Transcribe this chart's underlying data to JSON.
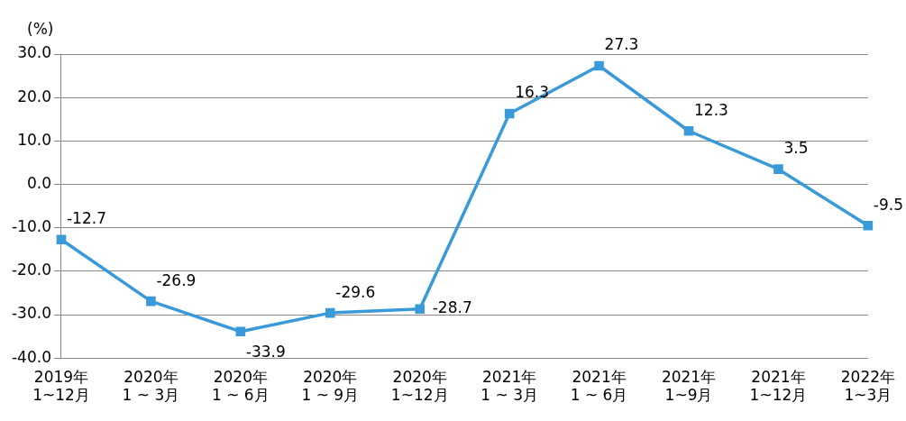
{
  "chart_data": {
    "type": "line",
    "ylabel": "(%)",
    "categories": [
      "2019年\n1~12月",
      "2020年\n1 ~ 3月",
      "2020年\n1 ~ 6月",
      "2020年\n1 ~ 9月",
      "2020年\n1~12月",
      "2021年\n1 ~ 3月",
      "2021年\n1 ~ 6月",
      "2021年\n1~9月",
      "2021年\n1~12月",
      "2022年\n1~3月"
    ],
    "series": [
      {
        "color": "#3a9ad9",
        "values": [
          -12.7,
          -26.9,
          -33.9,
          -29.6,
          -28.7,
          16.3,
          27.3,
          12.3,
          3.5,
          -9.5
        ]
      }
    ],
    "ylim": [
      -40,
      30
    ],
    "yticks": [
      {
        "value": -40,
        "label": "-40.0"
      },
      {
        "value": -30,
        "label": "-30.0"
      },
      {
        "value": -20,
        "label": "-20.0"
      },
      {
        "value": -10,
        "label": "-10.0"
      },
      {
        "value": 0,
        "label": "0.0"
      },
      {
        "value": 10,
        "label": "10.0"
      },
      {
        "value": 20,
        "label": "20.0"
      },
      {
        "value": 30,
        "label": "30.0"
      }
    ],
    "grid": "y",
    "marker": "square",
    "line_style": "solid",
    "data_labels": true
  }
}
